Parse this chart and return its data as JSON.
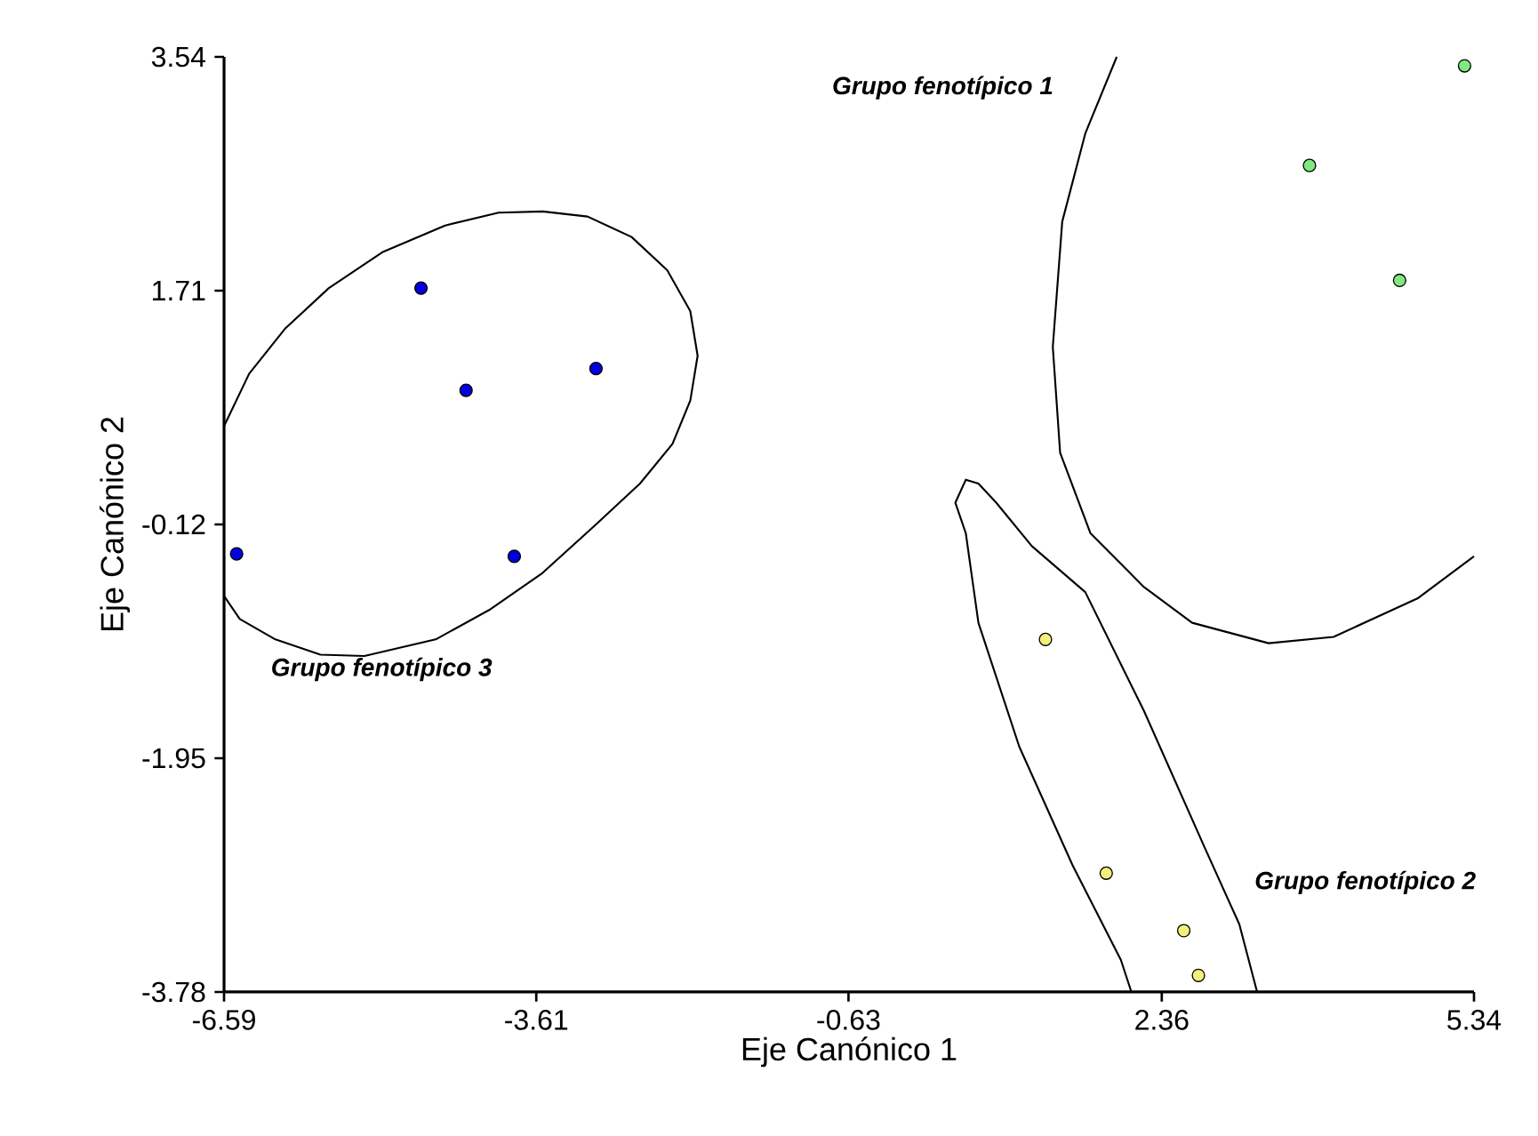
{
  "chart_data": {
    "type": "scatter",
    "xlabel": "Eje Canónico 1",
    "ylabel": "Eje Canónico 2",
    "xlim": [
      -6.59,
      5.34
    ],
    "ylim": [
      -3.78,
      3.54
    ],
    "xticks": [
      -6.59,
      -3.61,
      -0.63,
      2.36,
      5.34
    ],
    "yticks": [
      -3.78,
      -1.95,
      -0.12,
      1.71,
      3.54
    ],
    "grid": false,
    "series": [
      {
        "marker": "circle",
        "color": "#0000e0",
        "x": [
          -6.47,
          -4.71,
          -4.28,
          -3.04,
          -3.82
        ],
        "values": [
          -0.35,
          1.73,
          0.93,
          1.1,
          -0.37
        ]
      },
      {
        "marker": "circle",
        "color": "#80e880",
        "x": [
          5.25,
          3.77,
          4.63
        ],
        "values": [
          3.47,
          2.69,
          1.79
        ]
      },
      {
        "marker": "circle",
        "color": "#f5f07a",
        "x": [
          1.25,
          1.83,
          2.57,
          2.71
        ],
        "values": [
          -1.02,
          -2.85,
          -3.3,
          -3.65
        ]
      },
      {
        "type": "line",
        "color": "#000000",
        "x": [
          -6.59,
          -6.35,
          -6.01,
          -5.59,
          -5.08,
          -4.48,
          -3.97,
          -3.55,
          -3.12,
          -2.7,
          -2.36,
          -2.14,
          -2.07,
          -2.14,
          -2.31,
          -2.62,
          -3.04,
          -3.55,
          -4.06,
          -4.57,
          -5.25,
          -5.67,
          -6.1,
          -6.44,
          -6.59
        ],
        "values": [
          0.65,
          1.06,
          1.41,
          1.73,
          2.01,
          2.22,
          2.32,
          2.33,
          2.29,
          2.13,
          1.87,
          1.55,
          1.2,
          0.85,
          0.51,
          0.2,
          -0.12,
          -0.5,
          -0.79,
          -1.02,
          -1.15,
          -1.14,
          -1.02,
          -0.86,
          -0.68
        ]
      },
      {
        "type": "line",
        "color": "#000000",
        "x": [
          1.93,
          1.63,
          1.41,
          1.32,
          1.39,
          1.68,
          2.19,
          2.65,
          3.38,
          4.0,
          4.8,
          5.34
        ],
        "values": [
          3.54,
          2.94,
          2.25,
          1.27,
          0.44,
          -0.19,
          -0.61,
          -0.89,
          -1.05,
          -1.0,
          -0.7,
          -0.37
        ]
      },
      {
        "type": "line",
        "color": "#000000",
        "x": [
          2.07,
          1.97,
          1.51,
          1.0,
          0.61,
          0.49,
          0.39,
          0.49,
          0.61,
          0.78,
          1.12,
          1.63,
          2.19,
          2.77,
          3.1,
          3.27
        ],
        "values": [
          -3.78,
          -3.53,
          -2.79,
          -1.86,
          -0.89,
          -0.19,
          0.05,
          0.23,
          0.2,
          0.05,
          -0.29,
          -0.65,
          -1.58,
          -2.65,
          -3.25,
          -3.78
        ]
      }
    ],
    "annotations": [
      "Grupo fenotípico 1",
      "Grupo fenotípico 3",
      "Grupo fenotípico 2"
    ]
  }
}
